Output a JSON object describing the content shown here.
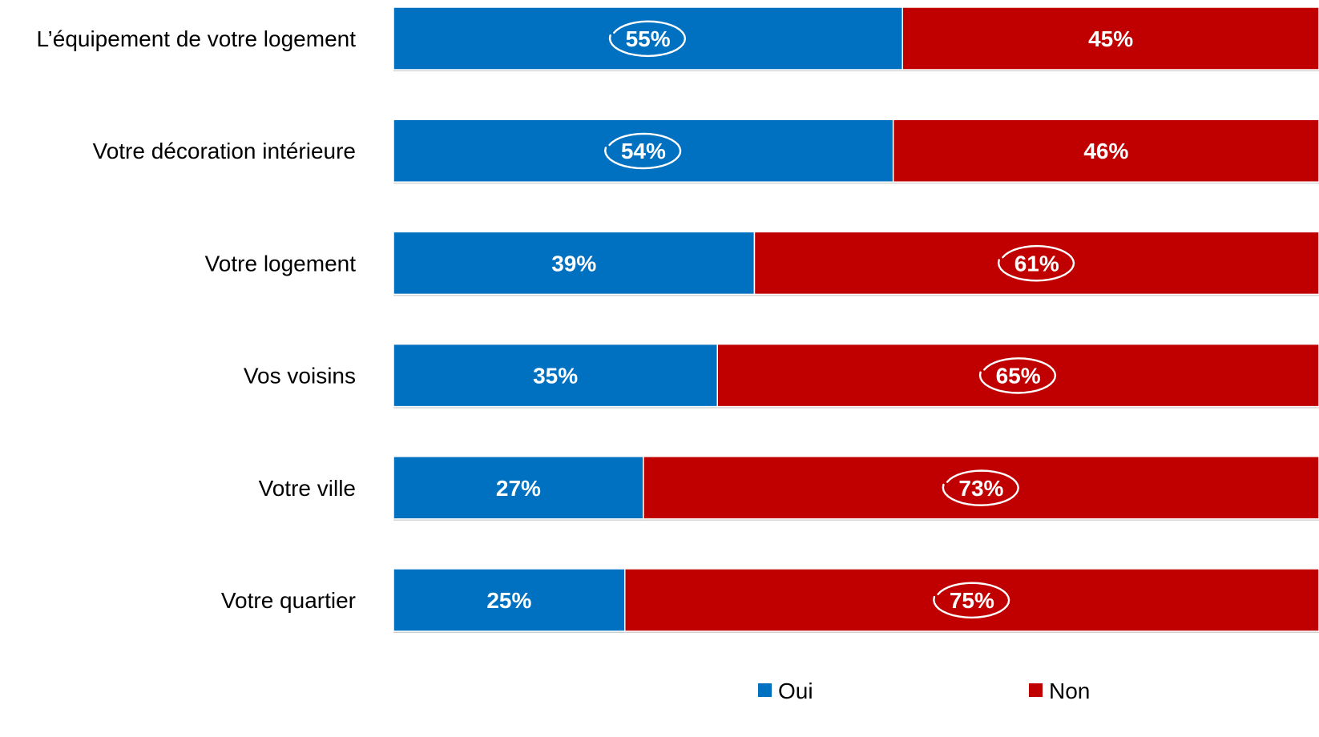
{
  "chart_data": {
    "type": "bar",
    "orientation": "horizontal",
    "stacked": true,
    "percent_stacked": true,
    "categories": [
      "L’équipement de votre logement",
      "Votre décoration intérieure",
      "Votre logement",
      "Vos voisins",
      "Votre ville",
      "Votre quartier"
    ],
    "series": [
      {
        "name": "Oui",
        "color": "#0070C0",
        "values": [
          55,
          54,
          39,
          35,
          27,
          25
        ],
        "labels": [
          "55%",
          "54%",
          "39%",
          "35%",
          "27%",
          "25%"
        ]
      },
      {
        "name": "Non",
        "color": "#C00000",
        "values": [
          45,
          46,
          61,
          65,
          73,
          75
        ],
        "labels": [
          "45%",
          "46%",
          "61%",
          "65%",
          "73%",
          "75%"
        ]
      }
    ],
    "highlighted": [
      {
        "category_index": 0,
        "series_index": 0
      },
      {
        "category_index": 1,
        "series_index": 0
      },
      {
        "category_index": 2,
        "series_index": 1
      },
      {
        "category_index": 3,
        "series_index": 1
      },
      {
        "category_index": 4,
        "series_index": 1
      },
      {
        "category_index": 5,
        "series_index": 1
      }
    ],
    "xlim": [
      0,
      100
    ],
    "grid": false,
    "legend_position": "bottom-right"
  }
}
